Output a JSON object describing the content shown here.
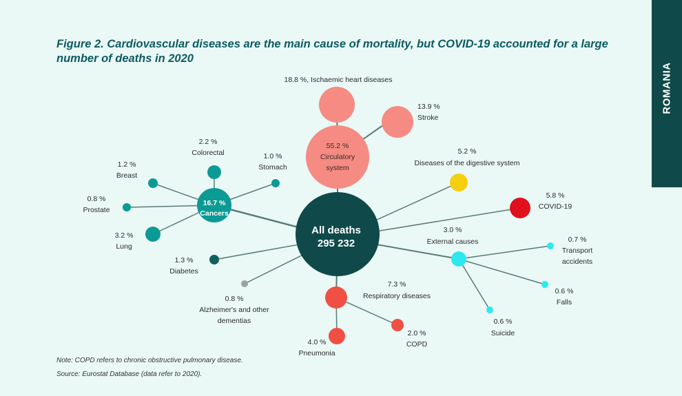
{
  "side_tab": {
    "label": "ROMANIA"
  },
  "figure": {
    "title": "Figure 2. Cardiovascular diseases are the main cause of mortality, but COVID-19 accounted for a large number of deaths in 2020",
    "center": {
      "line1": "All deaths",
      "line2": "295 232"
    },
    "groups": {
      "circulatory": {
        "pct": "55.2 %",
        "line1": "Circulatory",
        "line2": "system"
      },
      "cancers": {
        "pct": "16.7 %",
        "label": "Cancers"
      }
    },
    "nodes": {
      "ischaemic": {
        "text": "18.8 %, Ischaemic heart diseases"
      },
      "stroke": {
        "pct": "13.9 %",
        "name": "Stroke"
      },
      "colorectal": {
        "pct": "2.2 %",
        "name": "Colorectal"
      },
      "stomach": {
        "pct": "1.0 %",
        "name": "Stomach"
      },
      "breast": {
        "pct": "1.2 %",
        "name": "Breast"
      },
      "prostate": {
        "pct": "0.8 %",
        "name": "Prostate"
      },
      "lung": {
        "pct": "3.2 %",
        "name": "Lung"
      },
      "diabetes": {
        "pct": "1.3 %",
        "name": "Diabetes"
      },
      "alzheimers": {
        "pct": "0.8 %",
        "line1": "Alzheimer's and other",
        "line2": "dementias"
      },
      "digestive": {
        "pct": "5.2 %",
        "name": "Diseases of the digestive system"
      },
      "covid": {
        "pct": "5.8 %",
        "name": "COVID-19"
      },
      "external": {
        "pct": "3.0 %",
        "name": "External causes"
      },
      "transport": {
        "pct": "0.7 %",
        "line1": "Transport",
        "line2": "accidents"
      },
      "falls": {
        "pct": "0.6 %",
        "name": "Falls"
      },
      "suicide": {
        "pct": "0.6 %",
        "name": "Suicide"
      },
      "respiratory": {
        "pct": "7.3 %",
        "name": "Respiratory diseases"
      },
      "copd": {
        "pct": "2.0 %",
        "name": "COPD"
      },
      "pneumonia": {
        "pct": "4.0 %",
        "name": "Pneumonia"
      }
    },
    "colors": {
      "center": "#10494a",
      "circulatory": "#f58b82",
      "cancers": "#0c9a95",
      "digestive": "#f6cf10",
      "covid": "#e0101d",
      "external": "#2ee8f0",
      "diabetes": "#0f6160",
      "alzheimers": "#9aa3a0",
      "respiratory": "#f04f44",
      "link": "#587a78"
    }
  },
  "note": "Note: COPD refers to chronic obstructive pulmonary disease.",
  "source": "Source: Eurostat Database (data refer to 2020)."
}
